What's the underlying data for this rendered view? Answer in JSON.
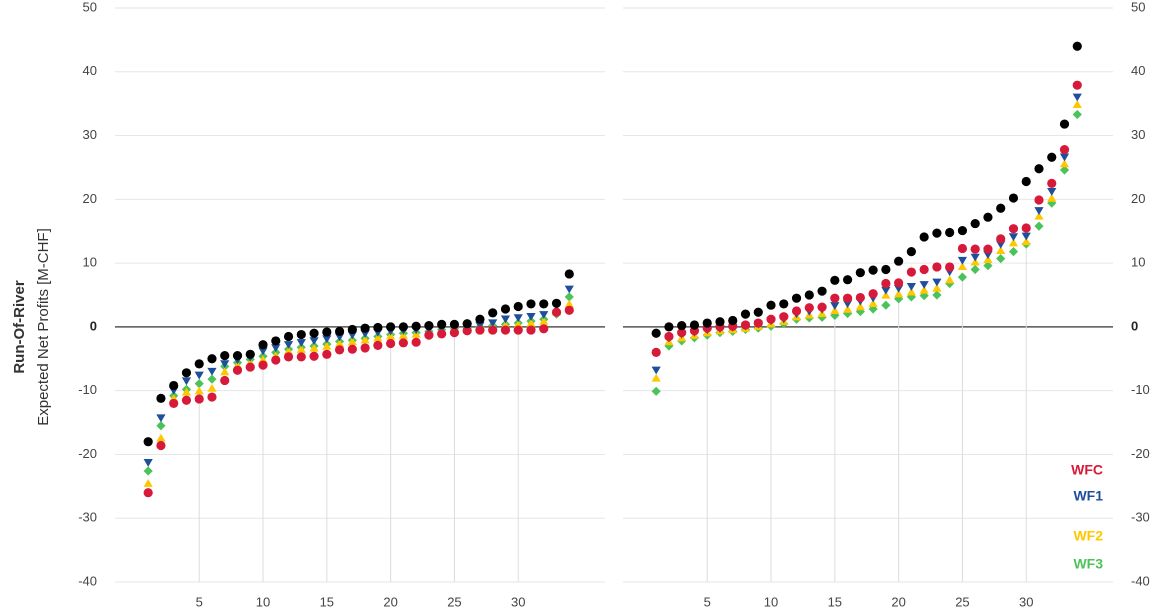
{
  "chart_data": [
    {
      "type": "scatter",
      "ylabel_bold": "Run-Of-River",
      "ylabel": "Expected Net Profits [M-CHF]",
      "x": [
        1,
        2,
        3,
        4,
        5,
        6,
        7,
        8,
        9,
        10,
        11,
        12,
        13,
        14,
        15,
        16,
        17,
        18,
        19,
        20,
        21,
        22,
        23,
        24,
        25,
        26,
        27,
        28,
        29,
        30,
        31,
        32,
        33,
        34
      ],
      "xlim": [
        -1.6,
        36.8
      ],
      "xticks": [
        5,
        10,
        15,
        20,
        25,
        30
      ],
      "ylim": [
        -40,
        50
      ],
      "yticks": [
        -40,
        -30,
        -20,
        -10,
        0,
        10,
        20,
        30,
        40,
        50
      ],
      "y_axis_side": "left",
      "grid": true,
      "series": [
        {
          "color": "#000000",
          "marker": "circle",
          "values": [
            -18,
            -11.2,
            -9.2,
            -7.2,
            -5.8,
            -5,
            -4.5,
            -4.5,
            -4.3,
            -2.8,
            -2.2,
            -1.5,
            -1.2,
            -1,
            -0.8,
            -0.7,
            -0.4,
            -0.2,
            -0.1,
            0,
            0,
            0.1,
            0.2,
            0.4,
            0.4,
            0.5,
            1.2,
            2.2,
            2.8,
            3.2,
            3.6,
            3.6,
            3.7,
            8.3
          ]
        },
        {
          "name": "WFC",
          "color": "#d7193a",
          "marker": "circle",
          "values": [
            -26,
            -18.6,
            -12,
            -11.5,
            -11.3,
            -11,
            -8.4,
            -6.8,
            -6.3,
            -6,
            -5.2,
            -4.7,
            -4.7,
            -4.6,
            -4.3,
            -3.6,
            -3.5,
            -3.3,
            -2.9,
            -2.6,
            -2.5,
            -2.4,
            -1.3,
            -1.1,
            -0.9,
            -0.6,
            -0.5,
            -0.5,
            -0.5,
            -0.5,
            -0.5,
            -0.3,
            2.3,
            2.6
          ]
        },
        {
          "name": "WF1",
          "color": "#1f4e9c",
          "marker": "triangle-down",
          "values": [
            -21.3,
            -14.3,
            -10,
            -8.5,
            -7.6,
            -7,
            -5.8,
            -5.2,
            -4.8,
            -3.8,
            -3.3,
            -2.8,
            -2.5,
            -2.2,
            -1.9,
            -1.6,
            -1.3,
            -1.1,
            -0.9,
            -0.7,
            -0.6,
            -0.5,
            -0.4,
            -0.3,
            -0.2,
            0,
            0.2,
            0.6,
            1.2,
            1.4,
            1.6,
            1.9,
            3.2,
            5.9
          ]
        },
        {
          "name": "WF2",
          "color": "#ffc700",
          "marker": "triangle-up",
          "values": [
            -24.5,
            -17.4,
            -11.2,
            -10.2,
            -10,
            -9.6,
            -7,
            -6,
            -5.6,
            -5.1,
            -4.5,
            -3.8,
            -3.5,
            -3.3,
            -3,
            -2.6,
            -2.3,
            -2,
            -1.7,
            -1.4,
            -1.3,
            -1.1,
            -0.8,
            -0.6,
            -0.5,
            -0.3,
            -0.1,
            0.1,
            0.3,
            0.4,
            0.6,
            0.9,
            2.4,
            3.6
          ]
        },
        {
          "name": "WF3",
          "color": "#4cc35a",
          "marker": "diamond",
          "values": [
            -22.6,
            -15.5,
            -10.8,
            -9.8,
            -8.9,
            -8.2,
            -6.2,
            -5.6,
            -5.1,
            -4.6,
            -4,
            -3.5,
            -3.2,
            -3,
            -2.7,
            -2.3,
            -2.1,
            -1.8,
            -1.5,
            -1.2,
            -1,
            -0.9,
            -0.7,
            -0.4,
            -0.3,
            -0.2,
            0,
            0.2,
            0.4,
            0.6,
            0.9,
            1.2,
            2,
            4.7
          ]
        }
      ]
    },
    {
      "type": "scatter",
      "x": [
        1,
        2,
        3,
        4,
        5,
        6,
        7,
        8,
        9,
        10,
        11,
        12,
        13,
        14,
        15,
        16,
        17,
        18,
        19,
        20,
        21,
        22,
        23,
        24,
        25,
        26,
        27,
        28,
        29,
        30,
        31,
        32,
        33,
        34
      ],
      "xlim": [
        -1.6,
        36.8
      ],
      "xticks": [
        5,
        10,
        15,
        20,
        25,
        30
      ],
      "ylim": [
        -40,
        50
      ],
      "yticks": [
        -40,
        -30,
        -20,
        -10,
        0,
        10,
        20,
        30,
        40,
        50
      ],
      "y_axis_side": "right",
      "grid": true,
      "legend": "lower right",
      "series": [
        {
          "color": "#000000",
          "marker": "circle",
          "values": [
            -1,
            0,
            0.2,
            0.3,
            0.6,
            0.8,
            1,
            2,
            2.3,
            3.4,
            3.6,
            4.5,
            5,
            5.6,
            7.3,
            7.4,
            8.5,
            8.9,
            9,
            10.3,
            11.8,
            14.1,
            14.7,
            14.8,
            15.1,
            16.2,
            17.2,
            18.6,
            20.2,
            22.8,
            24.8,
            26.6,
            31.8,
            44
          ]
        },
        {
          "name": "WFC",
          "color": "#d7193a",
          "marker": "circle",
          "values": [
            -4,
            -1.5,
            -0.9,
            -0.6,
            -0.2,
            0,
            0.1,
            0.3,
            0.6,
            1.2,
            1.6,
            2.5,
            3,
            3.1,
            4.5,
            4.5,
            4.6,
            5.2,
            6.8,
            6.9,
            8.6,
            9,
            9.4,
            9.4,
            12.3,
            12.2,
            12.2,
            13.8,
            15.4,
            15.5,
            19.9,
            22.5,
            27.8,
            37.9
          ]
        },
        {
          "name": "WF1",
          "color": "#1f4e9c",
          "marker": "triangle-down",
          "values": [
            -6.8,
            -1.8,
            -1.2,
            -0.9,
            -0.5,
            -0.3,
            -0.1,
            0.1,
            0.4,
            0.9,
            1.2,
            2,
            2.4,
            2.7,
            3.3,
            3.6,
            4,
            4.5,
            5.7,
            6,
            6.3,
            6.6,
            7,
            8.6,
            10.4,
            10.9,
            11.3,
            12.9,
            14.1,
            14.2,
            18.2,
            21.2,
            26.6,
            36
          ]
        },
        {
          "name": "WF2",
          "color": "#ffc700",
          "marker": "triangle-up",
          "values": [
            -8,
            -2.3,
            -1.7,
            -1.3,
            -0.9,
            -0.6,
            -0.4,
            -0.2,
            0.1,
            0.5,
            0.9,
            1.6,
            1.9,
            2.1,
            2.6,
            2.8,
            3.2,
            3.7,
            5,
            5.2,
            5.5,
            5.8,
            6.1,
            7.4,
            9.5,
            10.2,
            10.6,
            12,
            13.2,
            13.4,
            17.4,
            20.2,
            25.6,
            34.9
          ]
        },
        {
          "name": "WF3",
          "color": "#4cc35a",
          "marker": "diamond",
          "values": [
            -10.1,
            -3,
            -2.2,
            -1.7,
            -1.3,
            -0.9,
            -0.7,
            -0.4,
            -0.2,
            0.1,
            0.5,
            1.2,
            1.4,
            1.5,
            1.8,
            2.1,
            2.4,
            2.8,
            3.4,
            4.4,
            4.7,
            4.9,
            5,
            6.8,
            7.8,
            9,
            9.6,
            10.7,
            11.8,
            13,
            15.8,
            19.4,
            24.6,
            33.3
          ]
        }
      ]
    }
  ]
}
